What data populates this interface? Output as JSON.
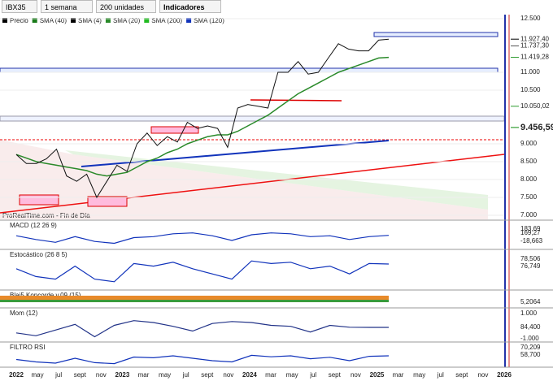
{
  "toolbar": {
    "symbol": "IBX35",
    "period": "1 semana",
    "units": "200 unidades",
    "indicators": "Indicadores"
  },
  "legend": [
    "Precio",
    "SMA (40)",
    "SMA (4)",
    "SMA (20)",
    "SMA (200)",
    "SMA (120)"
  ],
  "watermark": "ProRealTime.com - Fin de Día",
  "price_chart": {
    "ylim": [
      7000,
      12500
    ],
    "yticks": [
      {
        "value": 12500,
        "label": "12.500"
      },
      {
        "value": 11000,
        "label": "11.000"
      },
      {
        "value": 10500,
        "label": "10.500"
      },
      {
        "value": 9000,
        "label": "9.000"
      },
      {
        "value": 8500,
        "label": "8.500"
      },
      {
        "value": 8000,
        "label": "8.000"
      },
      {
        "value": 7500,
        "label": "7.500"
      },
      {
        "value": 7000,
        "label": "7.000"
      }
    ],
    "tags": [
      {
        "value": 11927.4,
        "label": "11.927,40"
      },
      {
        "value": 11737.3,
        "label": "11.737,30"
      },
      {
        "value": 11419.28,
        "label": "11.419,28"
      },
      {
        "value": 10050.02,
        "label": "10.050,02"
      },
      {
        "value": 9456.59,
        "label": "9.456,59"
      }
    ],
    "close": [
      8700,
      8450,
      8450,
      8580,
      8850,
      8100,
      7950,
      8150,
      7500,
      7950,
      8400,
      8230,
      9000,
      9300,
      8950,
      9200,
      9050,
      9600,
      9430,
      9500,
      9430,
      8900,
      10000,
      10100,
      10050,
      10000,
      11000,
      11000,
      11300,
      10950,
      11000,
      11400,
      11800,
      11650,
      11600,
      11600,
      11900,
      11927
    ],
    "sma": [
      8700,
      8600,
      8500,
      8450,
      8400,
      8350,
      8300,
      8250,
      8150,
      8100,
      8150,
      8200,
      8350,
      8500,
      8600,
      8750,
      8850,
      9000,
      9100,
      9200,
      9250,
      9250,
      9350,
      9500,
      9650,
      9800,
      10000,
      10200,
      10400,
      10550,
      10700,
      10850,
      11000,
      11100,
      11200,
      11300,
      11400,
      11419
    ]
  },
  "macd": {
    "title": "MACD (12 26 9)",
    "ylim": [
      -400,
      500
    ],
    "labels": [
      "183,69",
      "169,27",
      "-18,663"
    ],
    "values": [
      150,
      -50,
      -200,
      100,
      -150,
      -250,
      50,
      100,
      250,
      300,
      150,
      -100,
      200,
      300,
      250,
      100,
      150,
      -50,
      100,
      169
    ]
  },
  "stoch": {
    "title": "Estocástico (26 8 5)",
    "ylim": [
      0,
      100
    ],
    "labels": [
      "78,506",
      "76,749"
    ],
    "values": [
      60,
      30,
      20,
      70,
      20,
      10,
      80,
      70,
      85,
      60,
      40,
      20,
      90,
      80,
      85,
      60,
      70,
      40,
      80,
      78
    ]
  },
  "koncorde": {
    "title": "Blai5 Koncorde v.09 (15)",
    "labels": [
      "5,2064"
    ]
  },
  "mom": {
    "title": "Mom (12)",
    "ylim": [
      -1200,
      1200
    ],
    "labels": [
      "1.000",
      "84,400",
      "-1.000"
    ],
    "values": [
      -500,
      -800,
      -200,
      400,
      -900,
      300,
      800,
      600,
      200,
      -300,
      500,
      700,
      600,
      300,
      200,
      -400,
      300,
      100,
      84,
      84
    ]
  },
  "rsi": {
    "title": "FILTRO RSI",
    "ylim": [
      30,
      90
    ],
    "labels": [
      "70,209",
      "58,700"
    ],
    "values": [
      55,
      45,
      40,
      60,
      42,
      38,
      65,
      62,
      70,
      60,
      50,
      45,
      72,
      66,
      70,
      58,
      64,
      50,
      68,
      70
    ]
  },
  "xaxis": [
    "2022",
    "may",
    "jul",
    "sept",
    "nov",
    "2023",
    "mar",
    "may",
    "jul",
    "sept",
    "nov",
    "2024",
    "mar",
    "may",
    "jul",
    "sept",
    "nov",
    "2025",
    "mar",
    "may",
    "jul",
    "sept",
    "nov",
    "2026"
  ]
}
